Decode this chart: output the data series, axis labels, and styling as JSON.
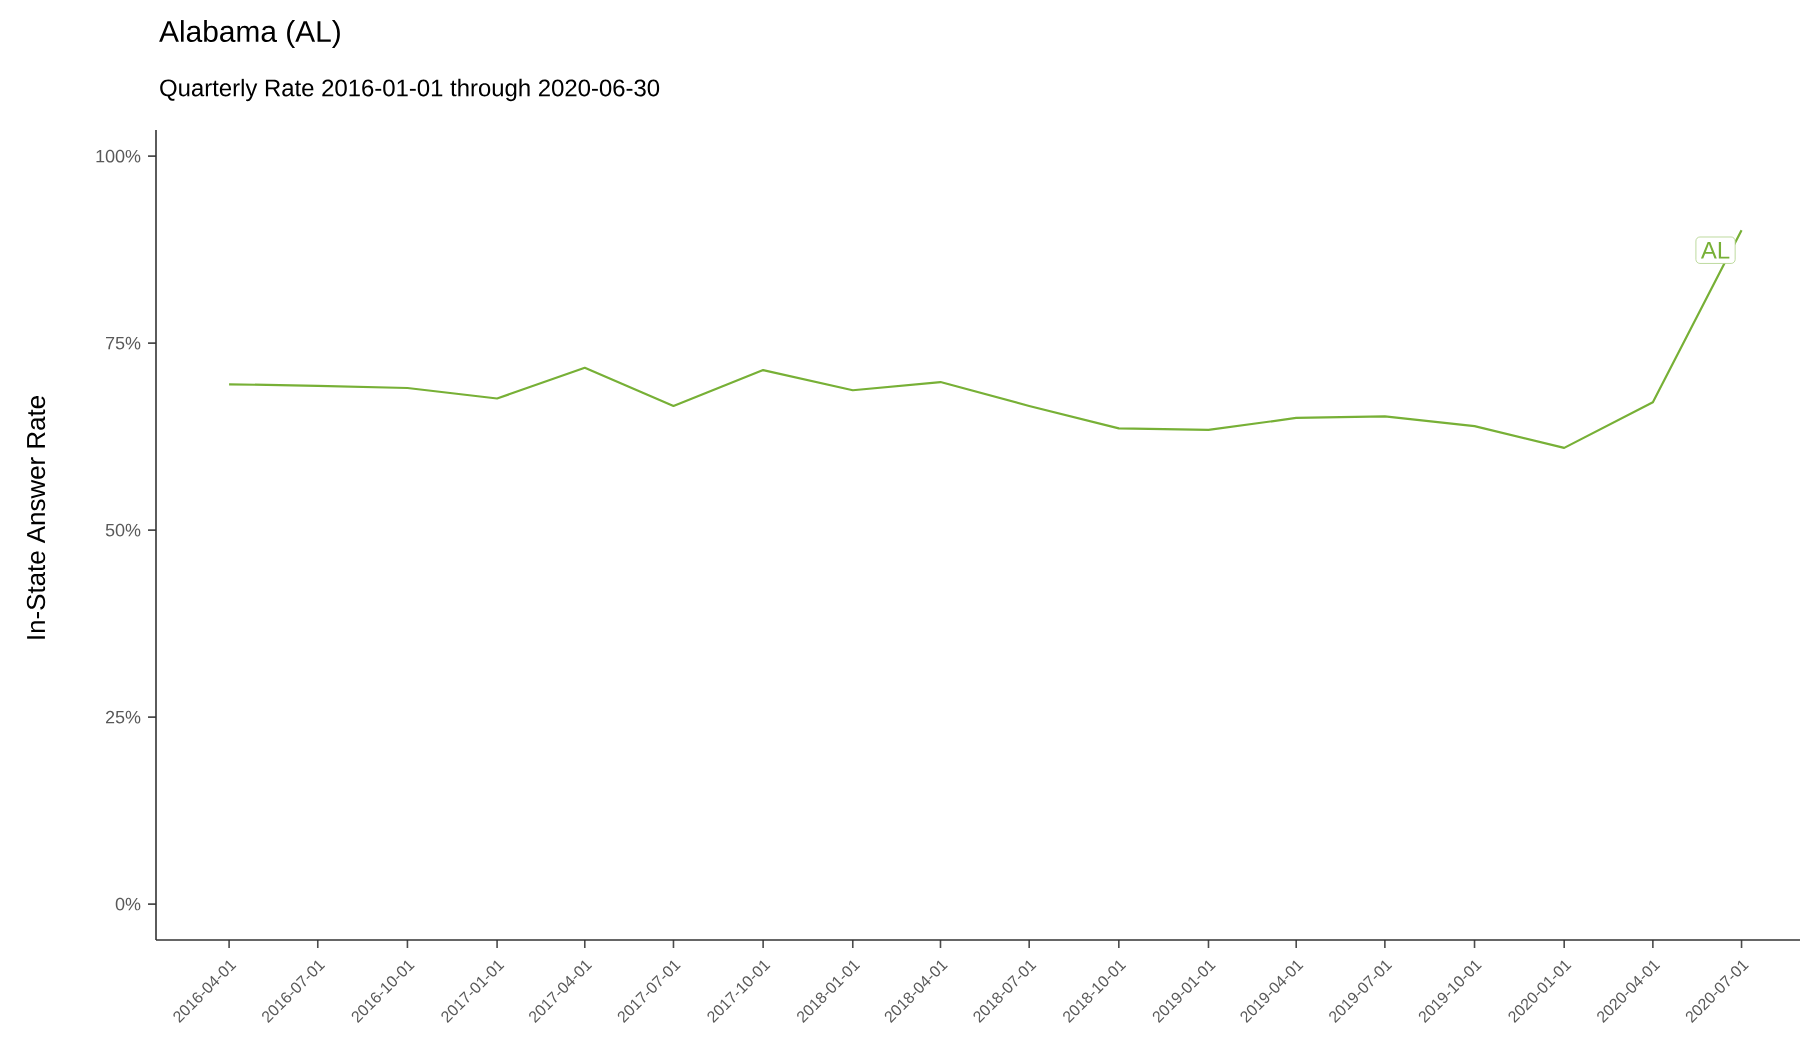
{
  "chart_data": {
    "type": "line",
    "title": "Alabama (AL)",
    "subtitle": "Quarterly Rate 2016-01-01 through 2020-06-30",
    "ylabel": "In-State Answer Rate",
    "x": [
      "2016-04-01",
      "2016-07-01",
      "2016-10-01",
      "2017-01-01",
      "2017-04-01",
      "2017-07-01",
      "2017-10-01",
      "2018-01-01",
      "2018-04-01",
      "2018-07-01",
      "2018-10-01",
      "2019-01-01",
      "2019-04-01",
      "2019-07-01",
      "2019-10-01",
      "2020-01-01",
      "2020-04-01",
      "2020-07-01"
    ],
    "series": [
      {
        "name": "AL",
        "color": "#77b036",
        "values": [
          69.5,
          69.3,
          69.0,
          67.6,
          71.7,
          66.6,
          71.4,
          68.7,
          69.8,
          66.6,
          63.6,
          63.4,
          65.0,
          65.2,
          63.9,
          61.0,
          67.1,
          90.1
        ]
      }
    ],
    "xlim": [
      "2016-01-17",
      "2020-08-30"
    ],
    "xticks": [
      "2016-04-01",
      "2016-07-01",
      "2016-10-01",
      "2017-01-01",
      "2017-04-01",
      "2017-07-01",
      "2017-10-01",
      "2018-01-01",
      "2018-04-01",
      "2018-07-01",
      "2018-10-01",
      "2019-01-01",
      "2019-04-01",
      "2019-07-01",
      "2019-10-01",
      "2020-01-01",
      "2020-04-01",
      "2020-07-01"
    ],
    "ylim": [
      -4.8,
      103.5
    ],
    "yticks": [
      {
        "value": 0,
        "label": "0%"
      },
      {
        "value": 25,
        "label": "25%"
      },
      {
        "value": 50,
        "label": "50%"
      },
      {
        "value": 75,
        "label": "75%"
      },
      {
        "value": 100,
        "label": "100%"
      }
    ],
    "grid": false,
    "legend": false,
    "marker": "none",
    "line_style": "solid"
  }
}
